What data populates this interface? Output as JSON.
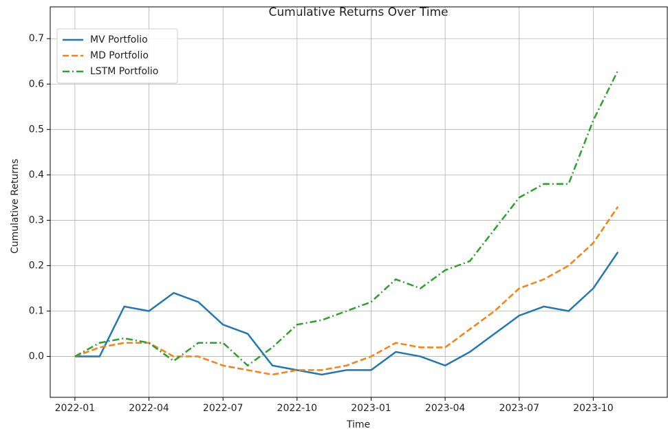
{
  "chart_data": {
    "type": "line",
    "title": "Cumulative Returns Over Time",
    "x_label": "Time",
    "y_label": "Cumulative Returns",
    "x": [
      "2022-01",
      "2022-02",
      "2022-03",
      "2022-04",
      "2022-05",
      "2022-06",
      "2022-07",
      "2022-08",
      "2022-09",
      "2022-10",
      "2022-11",
      "2022-12",
      "2023-01",
      "2023-02",
      "2023-03",
      "2023-04",
      "2023-05",
      "2023-06",
      "2023-07",
      "2023-08",
      "2023-09",
      "2023-10",
      "2023-11"
    ],
    "series": [
      {
        "name": "MV Portfolio",
        "color": "#1f77b4",
        "linestyle": "solid",
        "values": [
          0.0,
          0.0,
          0.11,
          0.1,
          0.14,
          0.12,
          0.07,
          0.05,
          -0.02,
          -0.03,
          -0.04,
          -0.03,
          -0.03,
          0.01,
          0.0,
          -0.02,
          0.01,
          0.05,
          0.09,
          0.11,
          0.1,
          0.15,
          0.23
        ]
      },
      {
        "name": "MD Portfolio",
        "color": "#ff7f0e",
        "linestyle": "dashed",
        "values": [
          0.0,
          0.02,
          0.03,
          0.03,
          0.0,
          0.0,
          -0.02,
          -0.03,
          -0.04,
          -0.03,
          -0.03,
          -0.02,
          0.0,
          0.03,
          0.02,
          0.02,
          0.06,
          0.1,
          0.15,
          0.17,
          0.2,
          0.25,
          0.33
        ]
      },
      {
        "name": "LSTM Portfolio",
        "color": "#2ca02c",
        "linestyle": "dashdot",
        "values": [
          0.0,
          0.03,
          0.04,
          0.03,
          -0.01,
          0.03,
          0.03,
          -0.02,
          0.02,
          0.07,
          0.08,
          0.1,
          0.12,
          0.17,
          0.15,
          0.19,
          0.21,
          0.28,
          0.35,
          0.38,
          0.38,
          0.52,
          0.63
        ]
      }
    ],
    "xlim": [
      "2021-12",
      "2024-01"
    ],
    "xticks": [
      "2022-01",
      "2022-04",
      "2022-07",
      "2022-10",
      "2023-01",
      "2023-04",
      "2023-07",
      "2023-10"
    ],
    "ylim": [
      -0.09,
      0.77
    ],
    "yticks": [
      {
        "value": 0,
        "label": "0.0"
      },
      0.1,
      0.2,
      0.3,
      0.4,
      0.5,
      0.6,
      0.7
    ],
    "grid": true,
    "legend": "upper left"
  }
}
